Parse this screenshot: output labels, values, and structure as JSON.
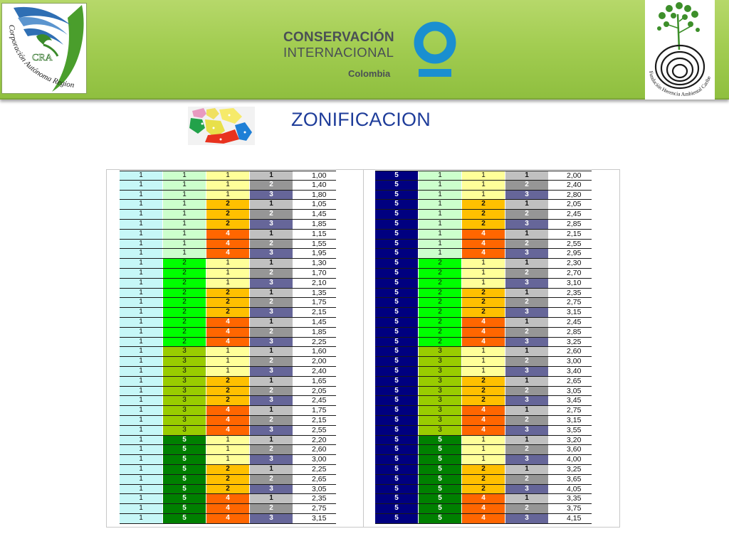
{
  "header": {
    "left_logo": {
      "icon": "cra-logo-icon",
      "text": "Corporación Autónoma Regional del Atlántico",
      "initials": "CRA"
    },
    "center_logo": {
      "line1": "CONSERVACIÓN",
      "line2": "INTERNACIONAL",
      "line3": "Colombia",
      "icon": "ci-ring-icon",
      "ring_color": "#1a8fd0"
    },
    "right_logo": {
      "icon": "fundacion-tree-icon",
      "text": "Fundación Herencia Ambiental Caribe"
    }
  },
  "title": {
    "text": "ZONIFICACION",
    "color": "#1f3d9a"
  },
  "map_icon": "zoning-map-icon",
  "colors": {
    "c1_a": "#c6f7f7",
    "c2": {
      "1": "#ccffcc",
      "2": "#00ff00",
      "3": "#99cc00",
      "5": "#008000"
    },
    "c3": {
      "1": "#ffff99",
      "2": "#ffc000",
      "4": "#ff6600"
    },
    "c4": {
      "1": "#c0c0c0",
      "2": "#969696",
      "3": "#666699"
    },
    "c1_b": "#000080"
  },
  "tables": [
    {
      "name": "zone-left",
      "rows": [
        [
          "1",
          "1",
          "1",
          "1",
          "1,00"
        ],
        [
          "1",
          "1",
          "1",
          "2",
          "1,40"
        ],
        [
          "1",
          "1",
          "1",
          "3",
          "1,80"
        ],
        [
          "1",
          "1",
          "2",
          "1",
          "1,05"
        ],
        [
          "1",
          "1",
          "2",
          "2",
          "1,45"
        ],
        [
          "1",
          "1",
          "2",
          "3",
          "1,85"
        ],
        [
          "1",
          "1",
          "4",
          "1",
          "1,15"
        ],
        [
          "1",
          "1",
          "4",
          "2",
          "1,55"
        ],
        [
          "1",
          "1",
          "4",
          "3",
          "1,95"
        ],
        [
          "1",
          "2",
          "1",
          "1",
          "1,30"
        ],
        [
          "1",
          "2",
          "1",
          "2",
          "1,70"
        ],
        [
          "1",
          "2",
          "1",
          "3",
          "2,10"
        ],
        [
          "1",
          "2",
          "2",
          "1",
          "1,35"
        ],
        [
          "1",
          "2",
          "2",
          "2",
          "1,75"
        ],
        [
          "1",
          "2",
          "2",
          "3",
          "2,15"
        ],
        [
          "1",
          "2",
          "4",
          "1",
          "1,45"
        ],
        [
          "1",
          "2",
          "4",
          "2",
          "1,85"
        ],
        [
          "1",
          "2",
          "4",
          "3",
          "2,25"
        ],
        [
          "1",
          "3",
          "1",
          "1",
          "1,60"
        ],
        [
          "1",
          "3",
          "1",
          "2",
          "2,00"
        ],
        [
          "1",
          "3",
          "1",
          "3",
          "2,40"
        ],
        [
          "1",
          "3",
          "2",
          "1",
          "1,65"
        ],
        [
          "1",
          "3",
          "2",
          "2",
          "2,05"
        ],
        [
          "1",
          "3",
          "2",
          "3",
          "2,45"
        ],
        [
          "1",
          "3",
          "4",
          "1",
          "1,75"
        ],
        [
          "1",
          "3",
          "4",
          "2",
          "2,15"
        ],
        [
          "1",
          "3",
          "4",
          "3",
          "2,55"
        ],
        [
          "1",
          "5",
          "1",
          "1",
          "2,20"
        ],
        [
          "1",
          "5",
          "1",
          "2",
          "2,60"
        ],
        [
          "1",
          "5",
          "1",
          "3",
          "3,00"
        ],
        [
          "1",
          "5",
          "2",
          "1",
          "2,25"
        ],
        [
          "1",
          "5",
          "2",
          "2",
          "2,65"
        ],
        [
          "1",
          "5",
          "2",
          "3",
          "3,05"
        ],
        [
          "1",
          "5",
          "4",
          "1",
          "2,35"
        ],
        [
          "1",
          "5",
          "4",
          "2",
          "2,75"
        ],
        [
          "1",
          "5",
          "4",
          "3",
          "3,15"
        ]
      ]
    },
    {
      "name": "zone-right",
      "rows": [
        [
          "5",
          "1",
          "1",
          "1",
          "2,00"
        ],
        [
          "5",
          "1",
          "1",
          "2",
          "2,40"
        ],
        [
          "5",
          "1",
          "1",
          "3",
          "2,80"
        ],
        [
          "5",
          "1",
          "2",
          "1",
          "2,05"
        ],
        [
          "5",
          "1",
          "2",
          "2",
          "2,45"
        ],
        [
          "5",
          "1",
          "2",
          "3",
          "2,85"
        ],
        [
          "5",
          "1",
          "4",
          "1",
          "2,15"
        ],
        [
          "5",
          "1",
          "4",
          "2",
          "2,55"
        ],
        [
          "5",
          "1",
          "4",
          "3",
          "2,95"
        ],
        [
          "5",
          "2",
          "1",
          "1",
          "2,30"
        ],
        [
          "5",
          "2",
          "1",
          "2",
          "2,70"
        ],
        [
          "5",
          "2",
          "1",
          "3",
          "3,10"
        ],
        [
          "5",
          "2",
          "2",
          "1",
          "2,35"
        ],
        [
          "5",
          "2",
          "2",
          "2",
          "2,75"
        ],
        [
          "5",
          "2",
          "2",
          "3",
          "3,15"
        ],
        [
          "5",
          "2",
          "4",
          "1",
          "2,45"
        ],
        [
          "5",
          "2",
          "4",
          "2",
          "2,85"
        ],
        [
          "5",
          "2",
          "4",
          "3",
          "3,25"
        ],
        [
          "5",
          "3",
          "1",
          "1",
          "2,60"
        ],
        [
          "5",
          "3",
          "1",
          "2",
          "3,00"
        ],
        [
          "5",
          "3",
          "1",
          "3",
          "3,40"
        ],
        [
          "5",
          "3",
          "2",
          "1",
          "2,65"
        ],
        [
          "5",
          "3",
          "2",
          "2",
          "3,05"
        ],
        [
          "5",
          "3",
          "2",
          "3",
          "3,45"
        ],
        [
          "5",
          "3",
          "4",
          "1",
          "2,75"
        ],
        [
          "5",
          "3",
          "4",
          "2",
          "3,15"
        ],
        [
          "5",
          "3",
          "4",
          "3",
          "3,55"
        ],
        [
          "5",
          "5",
          "1",
          "1",
          "3,20"
        ],
        [
          "5",
          "5",
          "1",
          "2",
          "3,60"
        ],
        [
          "5",
          "5",
          "1",
          "3",
          "4,00"
        ],
        [
          "5",
          "5",
          "2",
          "1",
          "3,25"
        ],
        [
          "5",
          "5",
          "2",
          "2",
          "3,65"
        ],
        [
          "5",
          "5",
          "2",
          "3",
          "4,05"
        ],
        [
          "5",
          "5",
          "4",
          "1",
          "3,35"
        ],
        [
          "5",
          "5",
          "4",
          "2",
          "3,75"
        ],
        [
          "5",
          "5",
          "4",
          "3",
          "4,15"
        ]
      ]
    }
  ]
}
